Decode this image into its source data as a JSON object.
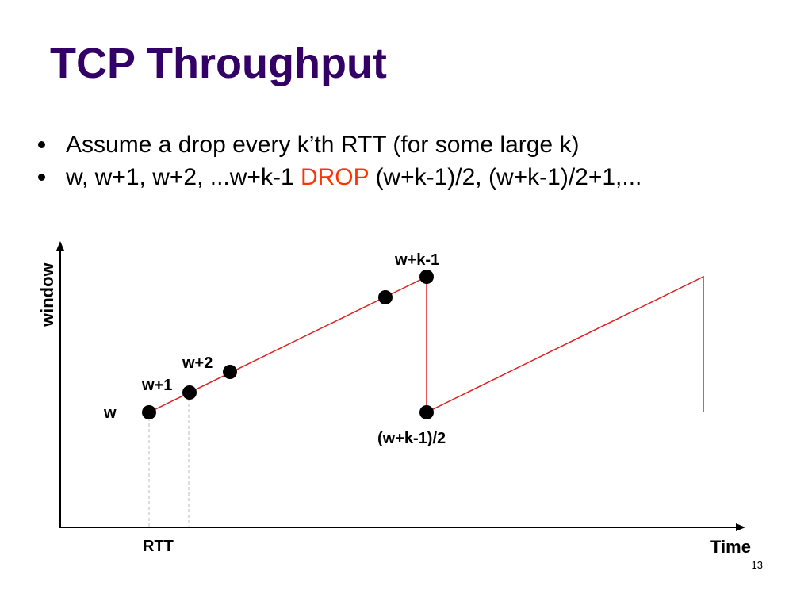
{
  "slide": {
    "title": "TCP Throughput",
    "page_number": "13"
  },
  "bullets": [
    {
      "text": "Assume a drop every k’th RTT (for some large k)"
    },
    {
      "pre": "w, w+1, w+2, ...w+k-1 ",
      "highlight": "DROP",
      "post": " (w+k-1)/2, (w+k-1)/2+1,..."
    }
  ],
  "colors": {
    "title": "#330066",
    "highlight": "#ff3300",
    "line": "#e02020",
    "dashed_guide": "#bbbbbb"
  },
  "diagram": {
    "y_axis_label": "window",
    "x_axis_label": "Time",
    "rtt_label": "RTT",
    "point_labels": {
      "w": "w",
      "w1": "w+1",
      "w2": "w+2",
      "peak": "w+k-1",
      "halved": "(w+k-1)/2"
    }
  }
}
